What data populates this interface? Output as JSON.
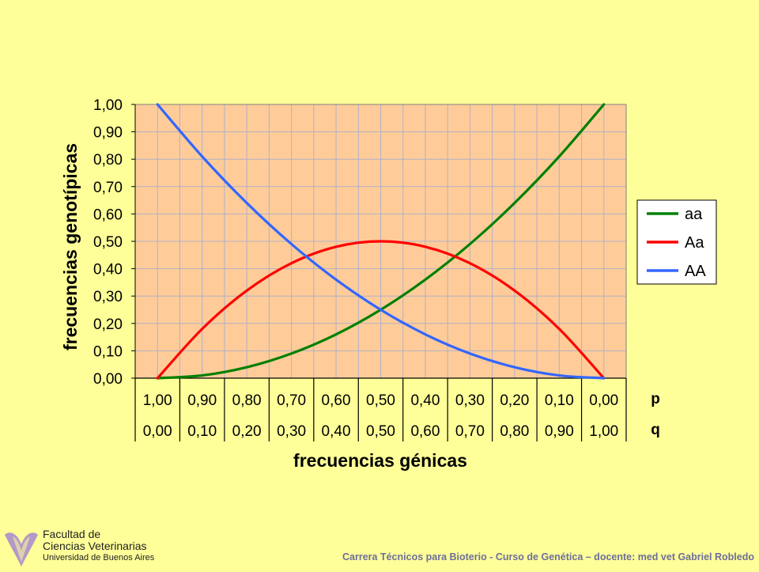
{
  "chart_data": {
    "type": "line",
    "ylabel": "frecuencias genotípicas",
    "xlabel": "frecuencias génicas",
    "ylim": [
      0,
      1
    ],
    "yticks": [
      "0,00",
      "0,10",
      "0,20",
      "0,30",
      "0,40",
      "0,50",
      "0,60",
      "0,70",
      "0,80",
      "0,90",
      "1,00"
    ],
    "x_rows": [
      {
        "name": "p",
        "values": [
          "1,00",
          "0,90",
          "0,80",
          "0,70",
          "0,60",
          "0,50",
          "0,40",
          "0,30",
          "0,20",
          "0,10",
          "0,00"
        ]
      },
      {
        "name": "q",
        "values": [
          "0,00",
          "0,10",
          "0,20",
          "0,30",
          "0,40",
          "0,50",
          "0,60",
          "0,70",
          "0,80",
          "0,90",
          "1,00"
        ]
      }
    ],
    "x": [
      0.0,
      0.1,
      0.2,
      0.3,
      0.4,
      0.5,
      0.6,
      0.7,
      0.8,
      0.9,
      1.0
    ],
    "series": [
      {
        "name": "aa",
        "color": "#008000",
        "values": [
          0.0,
          0.01,
          0.04,
          0.09,
          0.16,
          0.25,
          0.36,
          0.49,
          0.64,
          0.81,
          1.0
        ]
      },
      {
        "name": "Aa",
        "color": "#ff0000",
        "values": [
          0.0,
          0.18,
          0.32,
          0.42,
          0.48,
          0.5,
          0.48,
          0.42,
          0.32,
          0.18,
          0.0
        ]
      },
      {
        "name": "AA",
        "color": "#3366ff",
        "values": [
          1.0,
          0.81,
          0.64,
          0.49,
          0.36,
          0.25,
          0.16,
          0.09,
          0.04,
          0.01,
          0.0
        ]
      }
    ],
    "grid": true,
    "legend": "right",
    "plot_bg": "#ffcc99",
    "grid_color": "#b0b0c8"
  },
  "logo": {
    "line1": "Facultad de",
    "line2": "Ciencias Veterinarias",
    "line3": "Universidad de Buenos Aires"
  },
  "footer": "Carrera Técnicos para Bioterio - Curso de Genética – docente: med vet Gabriel Robledo",
  "page_bg": "#ffff99"
}
